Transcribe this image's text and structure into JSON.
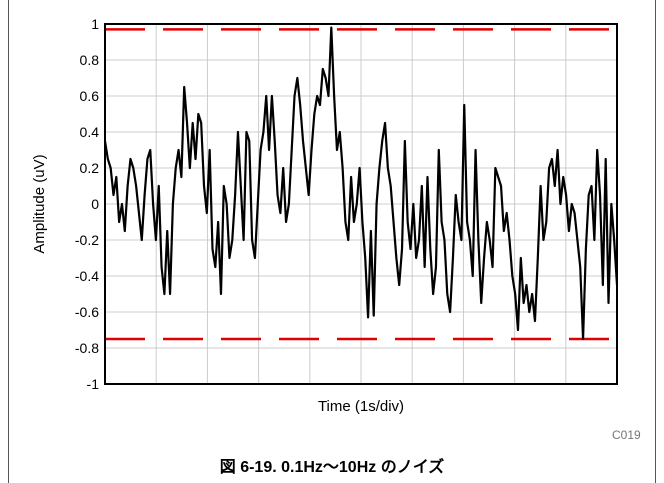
{
  "chart_data": {
    "type": "line",
    "xlabel": "Time (1s/div)",
    "ylabel": "Amplitude (uV)",
    "ylim": [
      -1,
      1
    ],
    "y_ticks": [
      1,
      0.8,
      0.6,
      0.4,
      0.2,
      0,
      -0.2,
      -0.4,
      -0.6,
      -0.8,
      -1
    ],
    "x_divisions": 10,
    "grid": true,
    "limit_lines": [
      0.97,
      -0.75
    ],
    "series": [
      {
        "color": "#000000",
        "values": [
          0.35,
          0.25,
          0.2,
          0.05,
          0.15,
          -0.1,
          0.0,
          -0.15,
          0.1,
          0.25,
          0.2,
          0.1,
          -0.05,
          -0.2,
          0.05,
          0.25,
          0.3,
          0.0,
          -0.2,
          0.1,
          -0.35,
          -0.5,
          -0.15,
          -0.5,
          0.0,
          0.2,
          0.3,
          0.15,
          0.65,
          0.45,
          0.2,
          0.45,
          0.25,
          0.5,
          0.45,
          0.1,
          -0.05,
          0.3,
          -0.25,
          -0.35,
          -0.1,
          -0.5,
          0.1,
          0.0,
          -0.3,
          -0.2,
          0.05,
          0.4,
          0.1,
          -0.2,
          0.4,
          0.35,
          -0.2,
          -0.3,
          0.0,
          0.3,
          0.4,
          0.6,
          0.3,
          0.6,
          0.35,
          0.05,
          -0.05,
          0.2,
          -0.1,
          0.0,
          0.3,
          0.6,
          0.7,
          0.55,
          0.35,
          0.2,
          0.05,
          0.3,
          0.5,
          0.6,
          0.55,
          0.75,
          0.7,
          0.6,
          0.98,
          0.6,
          0.3,
          0.4,
          0.2,
          -0.1,
          -0.2,
          0.15,
          -0.1,
          0.0,
          0.2,
          -0.1,
          -0.3,
          -0.63,
          -0.15,
          -0.62,
          0.0,
          0.2,
          0.35,
          0.45,
          0.2,
          0.1,
          -0.1,
          -0.3,
          -0.45,
          -0.25,
          0.35,
          -0.1,
          -0.25,
          0.0,
          -0.3,
          -0.2,
          0.1,
          -0.35,
          0.15,
          -0.25,
          -0.5,
          -0.35,
          0.3,
          -0.1,
          -0.2,
          -0.5,
          -0.6,
          -0.3,
          0.05,
          -0.1,
          -0.2,
          0.55,
          -0.1,
          -0.2,
          -0.4,
          0.3,
          -0.2,
          -0.55,
          -0.3,
          -0.1,
          -0.2,
          -0.35,
          0.2,
          0.15,
          0.1,
          -0.15,
          -0.05,
          -0.2,
          -0.4,
          -0.5,
          -0.7,
          -0.3,
          -0.55,
          -0.45,
          -0.6,
          -0.5,
          -0.65,
          -0.3,
          0.1,
          -0.2,
          -0.1,
          0.2,
          0.25,
          0.1,
          0.3,
          0.0,
          0.15,
          0.05,
          -0.15,
          0.0,
          -0.05,
          -0.2,
          -0.35,
          -0.75,
          -0.25,
          0.05,
          0.1,
          -0.2,
          0.3,
          0.05,
          -0.45,
          0.25,
          -0.55,
          0.0,
          -0.2,
          -0.45
        ]
      }
    ]
  },
  "caption": "図 6-19. 0.1Hz～10Hz のノイズ",
  "figure_code": "C019"
}
